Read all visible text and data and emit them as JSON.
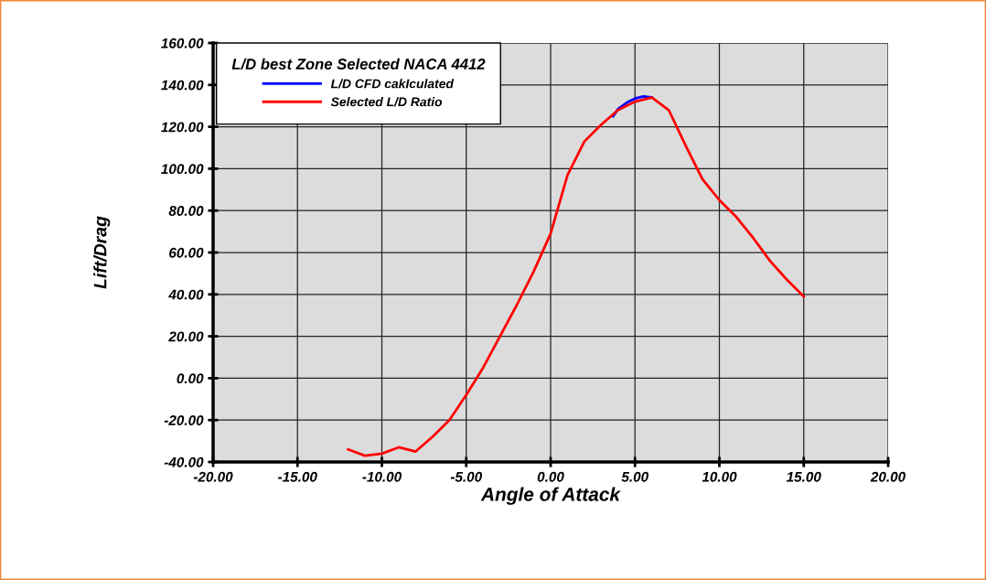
{
  "chart_data": {
    "type": "line",
    "xlabel": "Angle of Attack",
    "ylabel": "Lift/Drag",
    "legend_title": "L/D best Zone Selected NACA 4412",
    "series": [
      {
        "name": "L/D CFD cakIculated",
        "color": "#0000ff",
        "x": [
          3.7,
          4,
          4.5,
          5,
          5.5,
          6
        ],
        "values": [
          125,
          128.5,
          131.5,
          133.5,
          134.5,
          134
        ]
      },
      {
        "name": "Selected L/D Ratio",
        "color": "#ff0000",
        "x": [
          -12,
          -11,
          -10,
          -9,
          -8,
          -7,
          -6,
          -5,
          -4,
          -3,
          -2,
          -1,
          0,
          1,
          2,
          3,
          4,
          5,
          6,
          7,
          8,
          9,
          10,
          11,
          12,
          13,
          14,
          15
        ],
        "values": [
          -34,
          -37,
          -36,
          -33,
          -35,
          -28,
          -20,
          -8,
          5,
          20,
          35,
          51,
          69,
          97,
          113,
          121,
          128,
          132,
          134,
          128,
          111,
          95,
          85,
          77,
          67,
          56,
          47,
          39
        ]
      }
    ],
    "xlim": [
      -20,
      20
    ],
    "ylim": [
      -40,
      160
    ],
    "xticks": [
      {
        "value": -20,
        "label": "-20.00"
      },
      {
        "value": -15,
        "label": "-15.00"
      },
      {
        "value": -10,
        "label": "-10.00"
      },
      {
        "value": -5,
        "label": "-5.00"
      },
      {
        "value": 0,
        "label": "0.00"
      },
      {
        "value": 5,
        "label": "5.00"
      },
      {
        "value": 10,
        "label": "10.00"
      },
      {
        "value": 15,
        "label": "15.00"
      },
      {
        "value": 20,
        "label": "20.00"
      }
    ],
    "yticks": [
      {
        "value": -40,
        "label": "-40.00"
      },
      {
        "value": -20,
        "label": "-20.00"
      },
      {
        "value": 0,
        "label": "0.00"
      },
      {
        "value": 20,
        "label": "20.00"
      },
      {
        "value": 40,
        "label": "40.00"
      },
      {
        "value": 60,
        "label": "60.00"
      },
      {
        "value": 80,
        "label": "80.00"
      },
      {
        "value": 100,
        "label": "100.00"
      },
      {
        "value": 120,
        "label": "120.00"
      },
      {
        "value": 140,
        "label": "140.00"
      },
      {
        "value": 160,
        "label": "160.00"
      }
    ],
    "grid": true,
    "legend": "top left",
    "marker": "none",
    "line_style": "solid"
  }
}
